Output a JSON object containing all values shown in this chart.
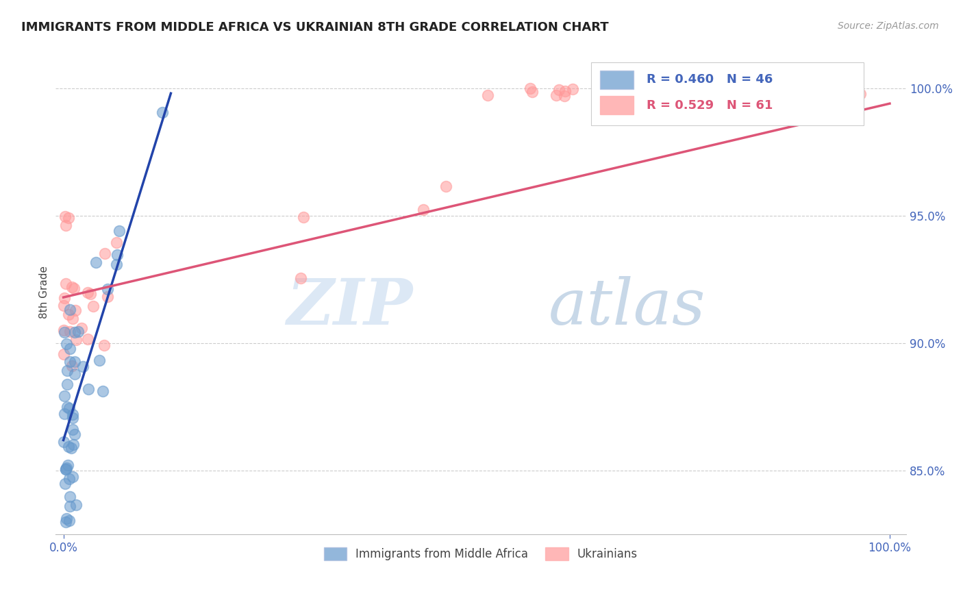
{
  "title": "IMMIGRANTS FROM MIDDLE AFRICA VS UKRAINIAN 8TH GRADE CORRELATION CHART",
  "source": "Source: ZipAtlas.com",
  "ylabel": "8th Grade",
  "xlim": [
    -0.01,
    1.02
  ],
  "ylim": [
    0.825,
    1.015
  ],
  "yticks": [
    0.85,
    0.9,
    0.95,
    1.0
  ],
  "ytick_labels": [
    "85.0%",
    "90.0%",
    "95.0%",
    "100.0%"
  ],
  "xtick_labels": [
    "0.0%",
    "100.0%"
  ],
  "xtick_vals": [
    0.0,
    1.0
  ],
  "blue_R": 0.46,
  "blue_N": 46,
  "pink_R": 0.529,
  "pink_N": 61,
  "blue_color": "#6699CC",
  "pink_color": "#FF9999",
  "blue_line_color": "#2244AA",
  "pink_line_color": "#DD5577",
  "tick_color": "#4466BB",
  "grid_color": "#CCCCCC",
  "background_color": "#FFFFFF",
  "watermark_zip": "ZIP",
  "watermark_atlas": "atlas",
  "watermark_color": "#DCE8F5",
  "legend_label_blue": "Immigrants from Middle Africa",
  "legend_label_pink": "Ukrainians"
}
